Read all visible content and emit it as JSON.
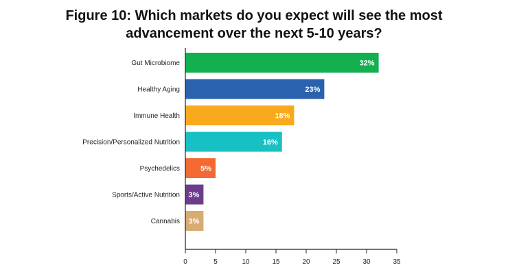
{
  "chart_data": {
    "type": "bar",
    "orientation": "horizontal",
    "title_lines": [
      "Figure 10: Which markets do you expect will see the most",
      "advancement over the next 5-10 years?"
    ],
    "categories": [
      "Gut Microbiome",
      "Healthy Aging",
      "Immune Health",
      "Precision/Personalized Nutrition",
      "Psychedelics",
      "Sports/Active Nutrition",
      "Cannabis"
    ],
    "values": [
      32,
      23,
      18,
      16,
      5,
      3,
      3
    ],
    "value_labels": [
      "32%",
      "23%",
      "18%",
      "16%",
      "5%",
      "3%",
      "3%"
    ],
    "colors": [
      "#12b04f",
      "#2b62ad",
      "#f8a91c",
      "#17c0c3",
      "#f26a32",
      "#6c3d8b",
      "#d8ab72"
    ],
    "xlim": [
      0,
      35
    ],
    "x_ticks": [
      "0",
      "5",
      "10",
      "15",
      "20",
      "25",
      "30",
      "35"
    ],
    "xlabel": "",
    "ylabel": "",
    "grid": false,
    "legend": "none"
  }
}
